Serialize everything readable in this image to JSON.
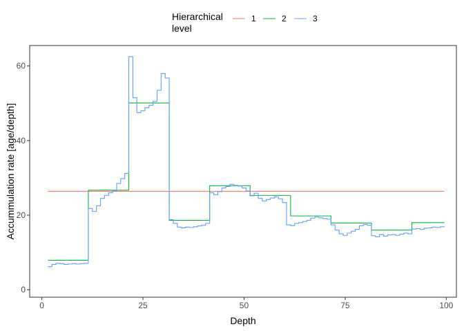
{
  "chart_data": {
    "type": "line",
    "step": true,
    "xlabel": "Depth",
    "ylabel": "Accummulation rate [age/depth]",
    "xlim": [
      -3,
      102.5
    ],
    "ylim": [
      -2,
      65.5
    ],
    "x_ticks": [
      0,
      25,
      50,
      75,
      100
    ],
    "y_ticks": [
      0,
      20,
      40,
      60
    ],
    "grid": false,
    "legend": {
      "title_lines": [
        "Hierarchical",
        "level"
      ],
      "position": "top",
      "entries": [
        {
          "label": "1",
          "color": "#F8766D"
        },
        {
          "label": "2",
          "color": "#00BA38"
        },
        {
          "label": "3",
          "color": "#619CFF"
        }
      ]
    },
    "series": [
      {
        "name": "1",
        "color": "#F8766D",
        "x": [
          1.5,
          99.5
        ],
        "y": [
          26.4,
          26.4
        ]
      },
      {
        "name": "2",
        "color": "#00BA38",
        "x": [
          1.5,
          11.5,
          21.5,
          31.5,
          41.5,
          51.5,
          61.5,
          71.5,
          81.5,
          91.5,
          99.5
        ],
        "y": [
          7.9,
          26.7,
          50.1,
          18.6,
          27.9,
          25.3,
          19.8,
          17.9,
          16.0,
          18.0,
          18.0
        ]
      },
      {
        "name": "3",
        "color": "#619CFF",
        "x": [
          1.5,
          2.5,
          3.5,
          4.5,
          5.5,
          6.5,
          7.5,
          8.5,
          9.5,
          10.5,
          11.5,
          12.5,
          13.5,
          14.5,
          15.5,
          16.5,
          17.5,
          18.5,
          19.5,
          20.5,
          21.5,
          22.5,
          23.5,
          24.5,
          25.5,
          26.5,
          27.5,
          28.5,
          29.5,
          30.5,
          31.5,
          32.5,
          33.5,
          34.5,
          35.5,
          36.5,
          37.5,
          38.5,
          39.5,
          40.5,
          41.5,
          42.5,
          43.5,
          44.5,
          45.5,
          46.5,
          47.5,
          48.5,
          49.5,
          50.5,
          51.5,
          52.5,
          53.5,
          54.5,
          55.5,
          56.5,
          57.5,
          58.5,
          59.5,
          60.5,
          61.5,
          62.5,
          63.5,
          64.5,
          65.5,
          66.5,
          67.5,
          68.5,
          69.5,
          70.5,
          71.5,
          72.5,
          73.5,
          74.5,
          75.5,
          76.5,
          77.5,
          78.5,
          79.5,
          80.5,
          81.5,
          82.5,
          83.5,
          84.5,
          85.5,
          86.5,
          87.5,
          88.5,
          89.5,
          90.5,
          91.5,
          92.5,
          93.5,
          94.5,
          95.5,
          96.5,
          97.5,
          98.5,
          99.5
        ],
        "y": [
          6.2,
          6.8,
          7.1,
          7.0,
          6.8,
          6.9,
          7.0,
          6.9,
          7.0,
          7.1,
          21.8,
          21.0,
          22.5,
          24.5,
          25.3,
          26.0,
          26.5,
          28.5,
          29.8,
          31.2,
          62.5,
          51.5,
          47.5,
          48.0,
          48.8,
          49.5,
          50.5,
          53.5,
          58.0,
          56.8,
          18.8,
          17.8,
          16.8,
          16.6,
          16.8,
          16.7,
          16.9,
          17.1,
          17.3,
          17.8,
          26.0,
          25.5,
          26.3,
          27.3,
          27.7,
          28.3,
          28.0,
          27.8,
          27.3,
          26.5,
          25.2,
          25.9,
          24.5,
          23.8,
          24.2,
          24.6,
          24.9,
          24.4,
          23.4,
          17.4,
          17.2,
          17.8,
          18.0,
          18.3,
          18.6,
          19.2,
          19.5,
          19.3,
          19.1,
          18.9,
          17.4,
          16.0,
          15.0,
          14.6,
          15.2,
          15.7,
          16.2,
          17.2,
          17.5,
          17.3,
          14.5,
          14.2,
          14.8,
          14.4,
          14.7,
          14.8,
          14.6,
          14.9,
          15.2,
          15.0,
          16.3,
          16.4,
          16.2,
          16.5,
          16.6,
          16.8,
          16.7,
          16.9,
          17.0
        ]
      }
    ]
  }
}
